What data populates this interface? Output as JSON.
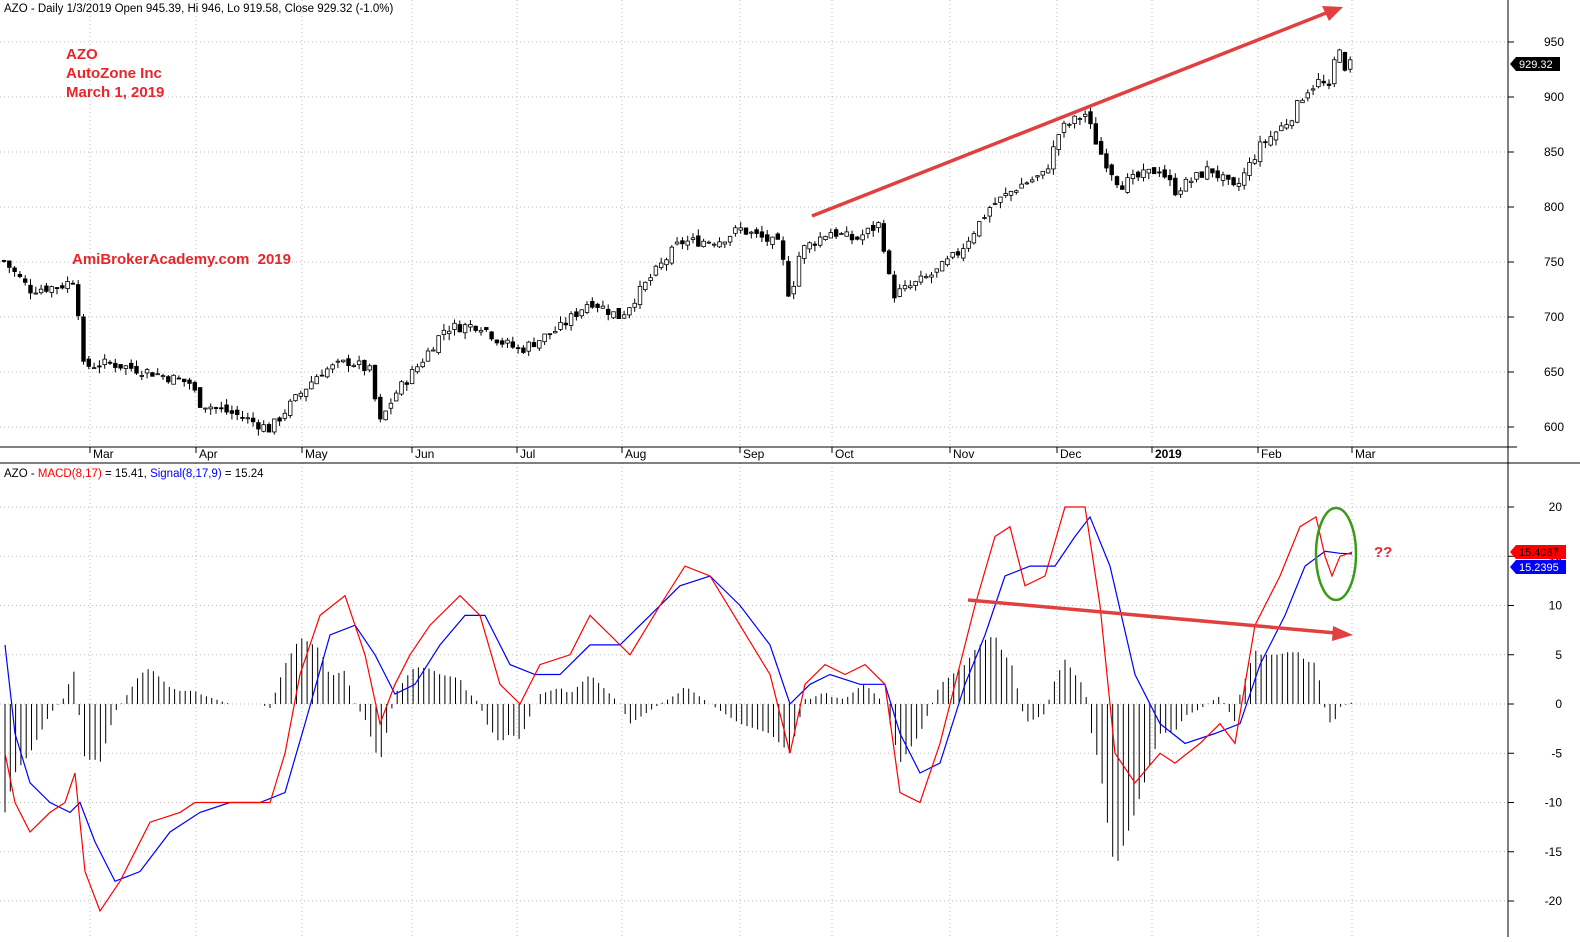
{
  "price_panel": {
    "header": "AZO - Daily 1/3/2019 Open 945.39, Hi 946, Lo 919.58, Close 929.32 (-1.0%)",
    "annotation_lines": [
      "AZO",
      "AutoZone Inc",
      "March 1, 2019"
    ],
    "watermark": "AmiBrokerAcademy.com  2019",
    "last_price_label": "929.32",
    "y_ticks": [
      950,
      900,
      850,
      800,
      750,
      700,
      650,
      600
    ]
  },
  "macd_panel": {
    "header_prefix": "AZO - ",
    "header_macd": "MACD(8,17)",
    "header_macd_value": " = 15.41, ",
    "header_signal": "Signal(8,17,9)",
    "header_signal_value": " = 15.24",
    "macd_value_label": "15.4087",
    "signal_value_label": "15.2395",
    "question_marks": "??",
    "y_ticks": [
      20,
      15,
      10,
      5,
      0,
      -5,
      -10,
      -15,
      -20
    ]
  },
  "x_axis": {
    "month_labels": [
      "Mar",
      "Apr",
      "May",
      "Jun",
      "Jul",
      "Aug",
      "Sep",
      "Oct",
      "Nov",
      "Dec",
      "2019",
      "Feb",
      "Mar"
    ]
  },
  "colors": {
    "candle": "#000000",
    "macd_line": "#ff0000",
    "signal_line": "#0000ff",
    "annotation_red": "#e8262a",
    "trend_arrow": "#e04040",
    "circle": "#3a9b1a",
    "last_price_box": "#000000",
    "macd_box": "#ff0000",
    "signal_box": "#0000ff"
  },
  "chart_data": [
    {
      "type": "candlestick",
      "title": "AZO - Daily",
      "ylim": [
        590,
        970
      ],
      "x": [
        "2018-03",
        "2018-04",
        "2018-05",
        "2018-06",
        "2018-07",
        "2018-08",
        "2018-09",
        "2018-10",
        "2018-11",
        "2018-12",
        "2019-01",
        "2019-02",
        "2019-03"
      ],
      "approx_monthly_close": [
        655,
        600,
        655,
        650,
        680,
        765,
        775,
        750,
        790,
        870,
        835,
        890,
        929.32
      ],
      "last_bar": {
        "open": 945.39,
        "high": 946,
        "low": 919.58,
        "close": 929.32,
        "change_pct": -1.0
      },
      "annotations": [
        "upward trend arrow from Oct 2018 to Mar 2019"
      ]
    },
    {
      "type": "line",
      "title": "MACD(8,17) / Signal(8,17,9)",
      "ylim": [
        -22,
        23
      ],
      "series": [
        {
          "name": "MACD(8,17)",
          "last": 15.41
        },
        {
          "name": "Signal(8,17,9)",
          "last": 15.24
        }
      ],
      "histogram": "MACD minus Signal",
      "annotations": [
        "downward divergence arrow from Nov 2018 to Mar 2019",
        "green circle around latest crossover"
      ]
    }
  ]
}
